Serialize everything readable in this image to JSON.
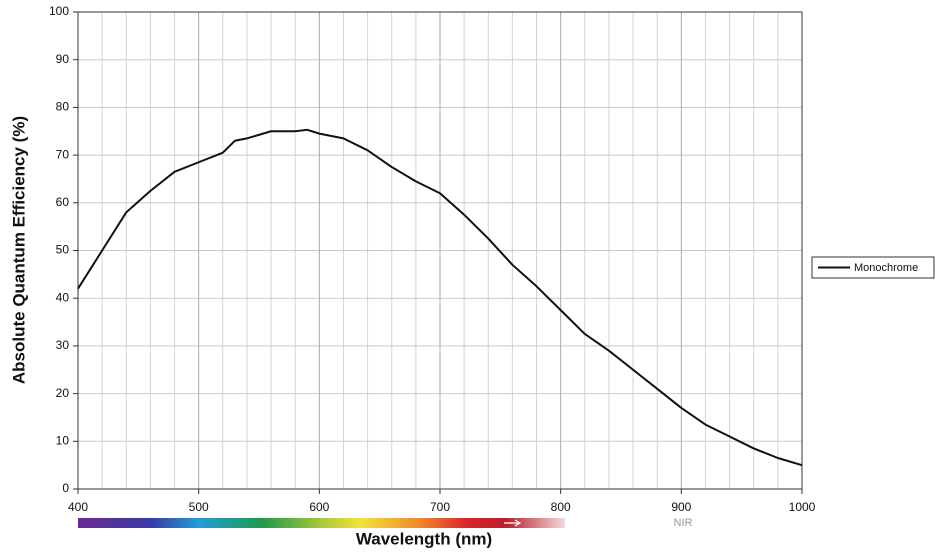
{
  "chart_data": {
    "type": "line",
    "xlabel": "Wavelength (nm)",
    "ylabel": "Absolute Quantum Efficiency (%)",
    "x": [
      400,
      420,
      440,
      460,
      480,
      500,
      520,
      530,
      540,
      560,
      580,
      590,
      600,
      620,
      640,
      660,
      680,
      700,
      720,
      740,
      760,
      780,
      800,
      820,
      840,
      860,
      880,
      900,
      920,
      940,
      960,
      980,
      1000
    ],
    "series": [
      {
        "name": "Monochrome",
        "color": "#111111",
        "values": [
          42,
          50,
          58,
          62.5,
          66.5,
          68.5,
          70.5,
          73,
          73.5,
          75,
          75,
          75.3,
          74.5,
          73.5,
          71,
          67.5,
          64.5,
          62,
          57.5,
          52.5,
          47,
          42.5,
          37.5,
          32.5,
          29,
          25,
          21,
          17,
          13.5,
          11,
          8.5,
          6.5,
          5
        ]
      }
    ],
    "xlim": [
      400,
      1000
    ],
    "xticks": [
      400,
      500,
      600,
      700,
      800,
      900,
      1000
    ],
    "xminorticks": [
      420,
      440,
      460,
      480,
      520,
      540,
      560,
      580,
      620,
      640,
      660,
      680,
      720,
      740,
      760,
      780,
      820,
      840,
      860,
      880,
      920,
      940,
      960,
      980
    ],
    "ylim": [
      0,
      100
    ],
    "yticks": [
      0,
      10,
      20,
      30,
      40,
      50,
      60,
      70,
      80,
      90,
      100
    ],
    "grid": true,
    "legend": "right",
    "band_label": "NIR"
  }
}
